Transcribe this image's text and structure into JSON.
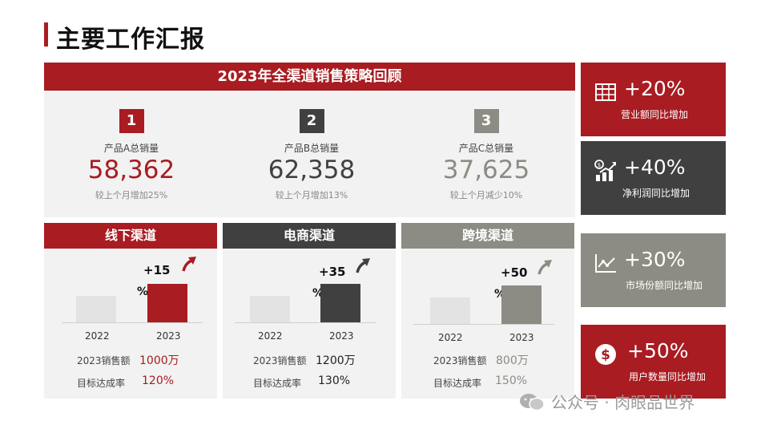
{
  "title": "主要工作汇报",
  "main_header": "2023年全渠道销售策略回顾",
  "products": [
    {
      "num": "1",
      "label": "产品A总销量",
      "value": "58,362",
      "note": "较上个月增加25%"
    },
    {
      "num": "2",
      "label": "产品B总销量",
      "value": "62,358",
      "note": "较上个月增加13%"
    },
    {
      "num": "3",
      "label": "产品C总销量",
      "value": "37,625",
      "note": "较上个月减少10%"
    }
  ],
  "channels": [
    {
      "name": "线下渠道",
      "growth": "+15",
      "pct_sign": "%",
      "year_prev": "2022",
      "year_cur": "2023",
      "sales_label": "2023销售额",
      "sales_value": "1000万",
      "rate_label": "目标达成率",
      "rate_value": "120%"
    },
    {
      "name": "电商渠道",
      "growth": "+35",
      "pct_sign": "%",
      "year_prev": "2022",
      "year_cur": "2023",
      "sales_label": "2023销售额",
      "sales_value": "1200万",
      "rate_label": "目标达成率",
      "rate_value": "130%"
    },
    {
      "name": "跨境渠道",
      "growth": "+50",
      "pct_sign": "%",
      "year_prev": "2022",
      "year_cur": "2023",
      "sales_label": "2023销售额",
      "sales_value": "800万",
      "rate_label": "目标达成率",
      "rate_value": "150%"
    }
  ],
  "kpis": [
    {
      "pct": "+20%",
      "label": "营业额同比增加",
      "icon": "table-icon"
    },
    {
      "pct": "+40%",
      "label": "净利润同比增加",
      "icon": "money-growth-icon"
    },
    {
      "pct": "+30%",
      "label": "市场份额同比增加",
      "icon": "line-chart-icon"
    },
    {
      "pct": "+50%",
      "label": "用户数量同比增加",
      "icon": "dollar-circle-icon"
    }
  ],
  "footer": "公众号 · 肉眼品世界",
  "colors": {
    "red": "#a81c22",
    "dark": "#404040",
    "gray": "#8c8c84",
    "panel": "#f2f2f2"
  }
}
